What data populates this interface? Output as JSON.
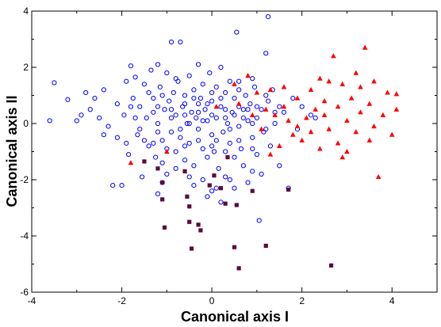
{
  "chart_data": {
    "type": "scatter",
    "title": "",
    "xlabel": "Canonical axis I",
    "ylabel": "Canonical axis II",
    "xlim": [
      -4,
      5
    ],
    "ylim": [
      -6,
      4
    ],
    "xticks": [
      -4,
      -2,
      0,
      2,
      4
    ],
    "yticks": [
      -6,
      -4,
      -2,
      0,
      2,
      4
    ],
    "grid": false,
    "legend": "none",
    "series": [
      {
        "marker": "open-circle",
        "color": "#0000ff",
        "points": [
          [
            -3.6,
            0.1
          ],
          [
            -3.5,
            1.45
          ],
          [
            -3.2,
            0.85
          ],
          [
            -3.0,
            0.1
          ],
          [
            -2.9,
            0.3
          ],
          [
            -2.8,
            1.1
          ],
          [
            -2.7,
            0.5
          ],
          [
            -2.6,
            0.9
          ],
          [
            -2.5,
            0.2
          ],
          [
            -2.4,
            1.2
          ],
          [
            -2.3,
            -0.1
          ],
          [
            -2.2,
            -2.2
          ],
          [
            -2.1,
            0.7
          ],
          [
            -2.0,
            -2.2
          ],
          [
            -1.95,
            0.3
          ],
          [
            -1.9,
            1.5
          ],
          [
            -1.85,
            -1.1
          ],
          [
            -1.8,
            2.05
          ],
          [
            -1.75,
            0.9
          ],
          [
            -1.7,
            1.65
          ],
          [
            -1.65,
            -0.4
          ],
          [
            -1.6,
            0.6
          ],
          [
            -1.55,
            -1.9
          ],
          [
            -1.5,
            1.4
          ],
          [
            -1.45,
            0.2
          ],
          [
            -1.4,
            -0.8
          ],
          [
            -1.35,
            1.9
          ],
          [
            -1.3,
            0.9
          ],
          [
            -1.25,
            -1.2
          ],
          [
            -1.2,
            2.1
          ],
          [
            -1.2,
            0.0
          ],
          [
            -1.15,
            1.3
          ],
          [
            -1.1,
            -0.6
          ],
          [
            -1.05,
            0.5
          ],
          [
            -1.0,
            1.8
          ],
          [
            -1.0,
            -1.8
          ],
          [
            -0.95,
            0.8
          ],
          [
            -0.9,
            -0.3
          ],
          [
            -0.9,
            2.9
          ],
          [
            -0.85,
            1.1
          ],
          [
            -0.8,
            -1.0
          ],
          [
            -0.8,
            0.3
          ],
          [
            -0.75,
            1.5
          ],
          [
            -0.7,
            -0.5
          ],
          [
            -0.7,
            2.9
          ],
          [
            -0.65,
            0.6
          ],
          [
            -0.6,
            -1.3
          ],
          [
            -0.6,
            1.0
          ],
          [
            -0.55,
            0.0
          ],
          [
            -0.5,
            1.7
          ],
          [
            -0.5,
            -0.7
          ],
          [
            -0.45,
            0.4
          ],
          [
            -0.4,
            1.2
          ],
          [
            -0.4,
            -1.5
          ],
          [
            -0.35,
            0.2
          ],
          [
            -0.3,
            2.1
          ],
          [
            -0.3,
            -0.2
          ],
          [
            -0.25,
            0.9
          ],
          [
            -0.2,
            -0.9
          ],
          [
            -0.2,
            1.4
          ],
          [
            -0.15,
            0.5
          ],
          [
            -0.1,
            -1.2
          ],
          [
            -0.1,
            0.1
          ],
          [
            -0.05,
            1.8
          ],
          [
            0.0,
            -0.4
          ],
          [
            0.0,
            0.8
          ],
          [
            0.05,
            -1.0
          ],
          [
            0.1,
            1.3
          ],
          [
            0.1,
            0.2
          ],
          [
            0.15,
            -1.6
          ],
          [
            0.2,
            0.6
          ],
          [
            0.2,
            2.0
          ],
          [
            0.25,
            -0.3
          ],
          [
            0.3,
            1.1
          ],
          [
            0.3,
            -1.9
          ],
          [
            0.35,
            0.0
          ],
          [
            0.4,
            1.5
          ],
          [
            0.4,
            -0.7
          ],
          [
            0.45,
            0.4
          ],
          [
            0.5,
            -1.2
          ],
          [
            0.5,
            0.9
          ],
          [
            0.55,
            3.25
          ],
          [
            0.6,
            -0.1
          ],
          [
            0.6,
            1.2
          ],
          [
            0.65,
            -0.9
          ],
          [
            0.7,
            0.5
          ],
          [
            0.7,
            -1.5
          ],
          [
            0.75,
            1.0
          ],
          [
            0.8,
            0.1
          ],
          [
            0.8,
            -2.1
          ],
          [
            0.85,
            0.7
          ],
          [
            0.9,
            -0.5
          ],
          [
            0.95,
            1.3
          ],
          [
            1.0,
            0.2
          ],
          [
            1.0,
            -1.1
          ],
          [
            1.05,
            -3.45
          ],
          [
            1.1,
            0.5
          ],
          [
            1.15,
            -0.3
          ],
          [
            1.2,
            2.5
          ],
          [
            1.25,
            0.8
          ],
          [
            1.25,
            3.8
          ],
          [
            1.3,
            -0.8
          ],
          [
            1.35,
            1.2
          ],
          [
            1.4,
            0.0
          ],
          [
            1.5,
            -1.5
          ],
          [
            1.6,
            0.4
          ],
          [
            1.7,
            -2.3
          ],
          [
            1.8,
            0.9
          ],
          [
            1.9,
            -0.2
          ],
          [
            2.0,
            0.6
          ],
          [
            2.2,
            0.3
          ],
          [
            2.3,
            0.2
          ],
          [
            -1.4,
            1.1
          ],
          [
            -1.3,
            0.4
          ],
          [
            -1.2,
            -0.3
          ],
          [
            -1.1,
            1.0
          ],
          [
            -0.9,
            0.2
          ],
          [
            -0.8,
            1.6
          ],
          [
            -0.7,
            -0.2
          ],
          [
            -0.6,
            0.7
          ],
          [
            -0.5,
            0.0
          ],
          [
            -0.4,
            0.9
          ],
          [
            -0.3,
            0.4
          ],
          [
            -0.2,
            0.1
          ],
          [
            -0.1,
            0.7
          ],
          [
            0.0,
            0.3
          ],
          [
            0.1,
            -0.6
          ],
          [
            0.2,
            0.9
          ],
          [
            0.3,
            0.5
          ],
          [
            0.4,
            -0.2
          ],
          [
            0.5,
            0.3
          ],
          [
            0.6,
            0.6
          ],
          [
            0.7,
            0.2
          ],
          [
            0.8,
            0.5
          ],
          [
            0.9,
            0.0
          ],
          [
            1.0,
            0.6
          ],
          [
            -1.6,
            -0.2
          ],
          [
            -1.7,
            0.2
          ],
          [
            -1.8,
            0.6
          ],
          [
            -1.5,
            -0.6
          ],
          [
            -1.3,
            -0.7
          ],
          [
            -1.0,
            -0.9
          ],
          [
            -0.6,
            -0.8
          ],
          [
            -0.3,
            -0.6
          ],
          [
            0.0,
            -0.8
          ],
          [
            0.3,
            -1.0
          ],
          [
            0.6,
            -0.6
          ],
          [
            0.9,
            -0.9
          ],
          [
            -1.2,
            0.6
          ],
          [
            -0.9,
            0.5
          ],
          [
            -0.6,
            0.3
          ],
          [
            -0.3,
            0.7
          ],
          [
            0.0,
            1.1
          ],
          [
            0.3,
            0.2
          ],
          [
            0.6,
            1.5
          ],
          [
            0.9,
            1.6
          ],
          [
            1.2,
            1.0
          ],
          [
            1.5,
            0.6
          ],
          [
            1.2,
            -0.2
          ],
          [
            1.4,
            0.4
          ],
          [
            -2.4,
            -0.4
          ],
          [
            -2.1,
            -0.5
          ],
          [
            -1.9,
            -0.7
          ],
          [
            -1.1,
            -1.4
          ],
          [
            -0.8,
            -1.6
          ],
          [
            -0.5,
            -1.9
          ],
          [
            0.4,
            -2.0
          ],
          [
            0.1,
            -2.3
          ],
          [
            -0.2,
            -2.0
          ],
          [
            -1.1,
            -2.1
          ],
          [
            0.9,
            -1.7
          ],
          [
            1.1,
            -1.8
          ],
          [
            -1.2,
            -2.5
          ],
          [
            -0.1,
            -2.6
          ],
          [
            0.2,
            -2.8
          ],
          [
            0.0,
            -2.4
          ],
          [
            0.5,
            -2.3
          ],
          [
            -0.4,
            -2.2
          ]
        ]
      },
      {
        "marker": "filled-triangle",
        "color": "#ff0000",
        "points": [
          [
            -1.8,
            -1.4
          ],
          [
            -1.0,
            -1.0
          ],
          [
            0.1,
            0.6
          ],
          [
            0.5,
            1.4
          ],
          [
            0.6,
            0.7
          ],
          [
            0.8,
            1.7
          ],
          [
            0.9,
            0.3
          ],
          [
            1.0,
            1.1
          ],
          [
            1.1,
            -0.2
          ],
          [
            1.2,
            0.5
          ],
          [
            1.3,
            -1.1
          ],
          [
            1.3,
            1.2
          ],
          [
            1.4,
            0.3
          ],
          [
            1.5,
            -0.8
          ],
          [
            1.6,
            1.3
          ],
          [
            1.7,
            0.1
          ],
          [
            1.8,
            -0.4
          ],
          [
            1.9,
            0.9
          ],
          [
            2.0,
            -0.6
          ],
          [
            2.1,
            0.2
          ],
          [
            2.2,
            1.2
          ],
          [
            2.2,
            -0.3
          ],
          [
            2.3,
            0.5
          ],
          [
            2.4,
            -0.9
          ],
          [
            2.5,
            0.3
          ],
          [
            2.6,
            1.5
          ],
          [
            2.6,
            -0.2
          ],
          [
            2.7,
            2.4
          ],
          [
            2.8,
            0.6
          ],
          [
            2.8,
            -0.7
          ],
          [
            2.9,
            1.4
          ],
          [
            3.0,
            0.1
          ],
          [
            3.0,
            -1.0
          ],
          [
            3.1,
            0.9
          ],
          [
            3.2,
            -0.3
          ],
          [
            3.3,
            1.3
          ],
          [
            3.3,
            0.4
          ],
          [
            3.4,
            2.7
          ],
          [
            3.5,
            -0.6
          ],
          [
            3.5,
            0.7
          ],
          [
            3.6,
            1.5
          ],
          [
            3.6,
            -0.1
          ],
          [
            3.7,
            -1.9
          ],
          [
            3.8,
            0.3
          ],
          [
            3.9,
            1.1
          ],
          [
            4.0,
            -0.4
          ],
          [
            4.1,
            1.05
          ],
          [
            4.1,
            0.5
          ],
          [
            2.4,
            1.6
          ],
          [
            2.5,
            0.8
          ],
          [
            2.9,
            -1.2
          ],
          [
            3.2,
            1.8
          ],
          [
            1.6,
            0.6
          ],
          [
            1.9,
            -0.1
          ]
        ]
      },
      {
        "marker": "filled-square",
        "color": "#5c0a3c",
        "points": [
          [
            -1.5,
            -1.35
          ],
          [
            -1.2,
            -1.6
          ],
          [
            -1.1,
            -2.1
          ],
          [
            -1.1,
            -2.7
          ],
          [
            -1.05,
            -3.7
          ],
          [
            -0.6,
            -1.7
          ],
          [
            -0.55,
            -2.6
          ],
          [
            -0.5,
            -2.95
          ],
          [
            -0.5,
            -3.5
          ],
          [
            -0.45,
            -4.45
          ],
          [
            -0.3,
            -3.6
          ],
          [
            -0.25,
            -3.8
          ],
          [
            -0.05,
            -2.2
          ],
          [
            0.05,
            -1.85
          ],
          [
            0.2,
            -2.3
          ],
          [
            0.3,
            -2.85
          ],
          [
            0.35,
            -1.2
          ],
          [
            0.5,
            -4.4
          ],
          [
            0.55,
            -2.9
          ],
          [
            0.6,
            -5.15
          ],
          [
            0.9,
            -2.4
          ],
          [
            1.2,
            -4.35
          ],
          [
            1.7,
            -2.35
          ],
          [
            2.65,
            -5.05
          ]
        ]
      }
    ]
  }
}
